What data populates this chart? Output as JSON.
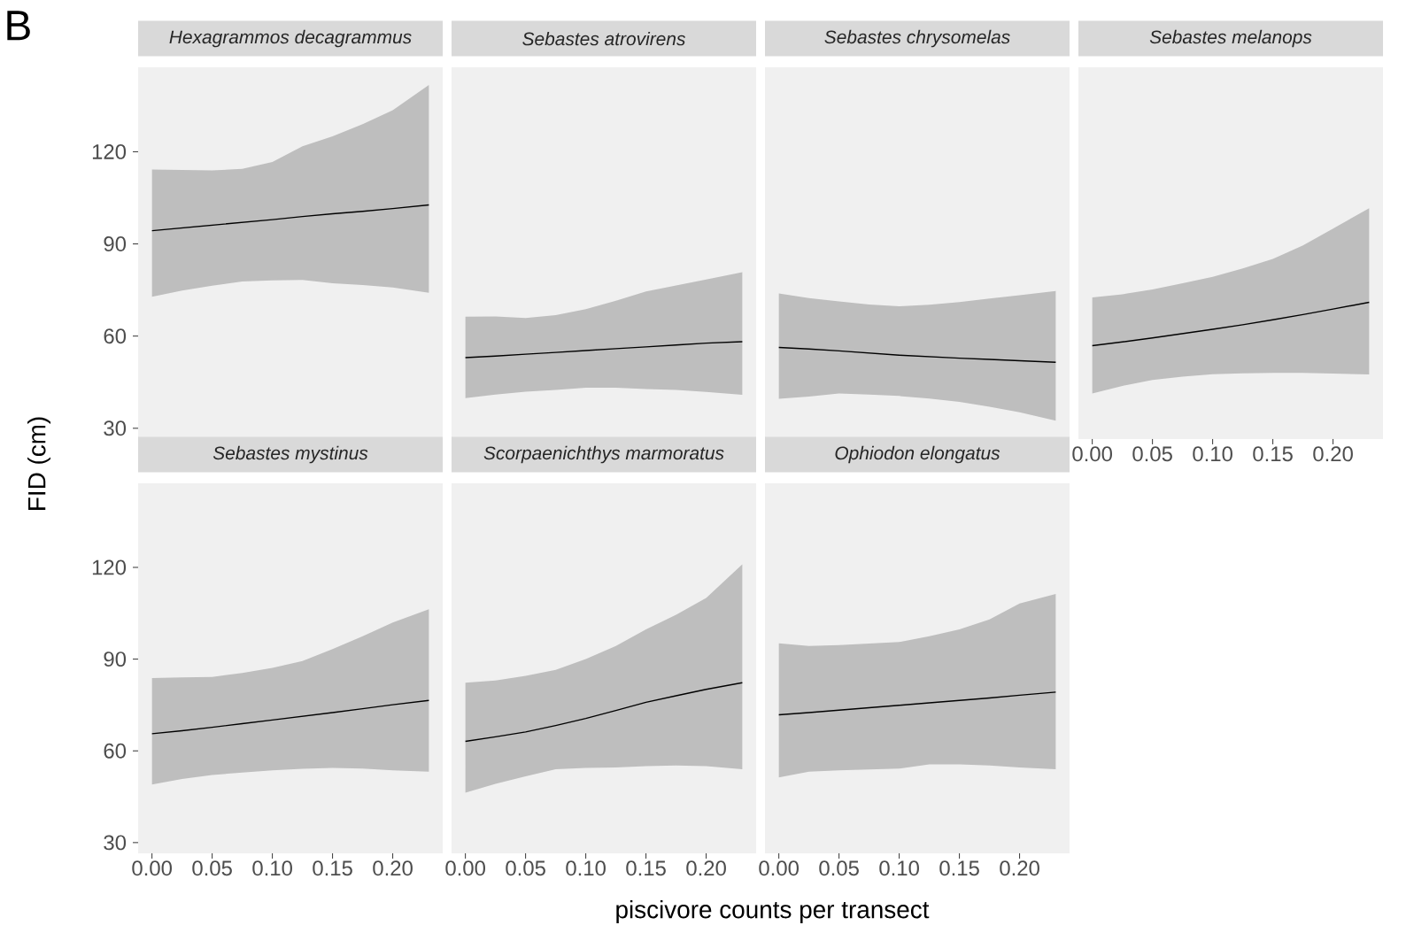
{
  "chart_data": [
    {
      "type": "line",
      "title": "Hexagrammos decagrammus",
      "annotations": [
        "B"
      ],
      "xlim": [
        -0.0115,
        0.2415
      ],
      "ylim": [
        26.5,
        147.5
      ],
      "yticks": [
        30,
        60,
        90,
        120
      ],
      "tick_labels": "y",
      "x": [
        0,
        0.025,
        0.05,
        0.075,
        0.1,
        0.125,
        0.15,
        0.175,
        0.2,
        0.23
      ],
      "series": [
        {
          "color": "#000000",
          "values": [
            94.3,
            95.2,
            96.1,
            97.0,
            97.9,
            98.9,
            99.8,
            100.6,
            101.5,
            102.7
          ],
          "upper": [
            114.2,
            114.1,
            113.9,
            114.4,
            116.7,
            121.8,
            125,
            129,
            133.5,
            141.7
          ],
          "lower": [
            72.8,
            74.8,
            76.4,
            77.8,
            78.1,
            78.3,
            77.2,
            76.6,
            75.8,
            74.1
          ]
        }
      ]
    },
    {
      "type": "line",
      "title": "Sebastes atrovirens",
      "xlim": [
        -0.0115,
        0.2415
      ],
      "ylim": [
        26.5,
        147.5
      ],
      "tick_labels": false,
      "x": [
        0,
        0.025,
        0.05,
        0.075,
        0.1,
        0.125,
        0.15,
        0.175,
        0.2,
        0.23
      ],
      "series": [
        {
          "color": "#000000",
          "values": [
            53.0,
            53.5,
            54.1,
            54.7,
            55.3,
            55.9,
            56.5,
            57.1,
            57.7,
            58.2
          ],
          "upper": [
            66.3,
            66.4,
            65.9,
            66.8,
            68.8,
            71.5,
            74.5,
            76.5,
            78.4,
            80.8
          ],
          "lower": [
            39.8,
            41.0,
            41.9,
            42.5,
            43.2,
            43.2,
            42.8,
            42.5,
            41.8,
            40.9
          ]
        }
      ]
    },
    {
      "type": "line",
      "title": "Sebastes chrysomelas",
      "xlim": [
        -0.0115,
        0.2415
      ],
      "ylim": [
        26.5,
        147.5
      ],
      "tick_labels": false,
      "x": [
        0,
        0.025,
        0.05,
        0.075,
        0.1,
        0.125,
        0.15,
        0.175,
        0.2,
        0.23
      ],
      "series": [
        {
          "color": "#000000",
          "values": [
            56.3,
            55.8,
            55.2,
            54.5,
            53.8,
            53.3,
            52.8,
            52.4,
            52.0,
            51.5
          ],
          "upper": [
            73.9,
            72.4,
            71.3,
            70.3,
            69.7,
            70.2,
            71.1,
            72.2,
            73.3,
            74.7
          ],
          "lower": [
            39.6,
            40.3,
            41.3,
            41.0,
            40.5,
            39.7,
            38.6,
            37.0,
            35.2,
            32.5
          ]
        }
      ]
    },
    {
      "type": "line",
      "title": "Sebastes melanops",
      "xlim": [
        -0.0115,
        0.2415
      ],
      "ylim": [
        26.5,
        147.5
      ],
      "xticks": [
        {
          "value": 0,
          "label": "0.00"
        },
        {
          "value": 0.05,
          "label": "0.05"
        },
        {
          "value": 0.1,
          "label": "0.10"
        },
        {
          "value": 0.15,
          "label": "0.15"
        },
        {
          "value": 0.2,
          "label": "0.20"
        }
      ],
      "tick_labels": "x",
      "x": [
        0,
        0.025,
        0.05,
        0.075,
        0.1,
        0.125,
        0.15,
        0.175,
        0.2,
        0.23
      ],
      "series": [
        {
          "color": "#000000",
          "values": [
            56.9,
            58.1,
            59.4,
            60.8,
            62.2,
            63.7,
            65.3,
            67.0,
            68.8,
            71.0
          ],
          "upper": [
            72.6,
            73.6,
            75.2,
            77.2,
            79.3,
            82.0,
            85.1,
            89.5,
            95.0,
            101.6
          ],
          "lower": [
            41.3,
            43.8,
            45.7,
            46.8,
            47.6,
            47.9,
            48.0,
            48.0,
            47.8,
            47.5
          ]
        }
      ]
    },
    {
      "type": "line",
      "title": "Sebastes mystinus",
      "ylabel": "FID (cm)",
      "xlim": [
        -0.0115,
        0.2415
      ],
      "ylim": [
        26.5,
        147.5
      ],
      "xticks": [
        {
          "value": 0,
          "label": "0.00"
        },
        {
          "value": 0.05,
          "label": "0.05"
        },
        {
          "value": 0.1,
          "label": "0.10"
        },
        {
          "value": 0.15,
          "label": "0.15"
        },
        {
          "value": 0.2,
          "label": "0.20"
        }
      ],
      "yticks": [
        30,
        60,
        90,
        120
      ],
      "x": [
        0,
        0.025,
        0.05,
        0.075,
        0.1,
        0.125,
        0.15,
        0.175,
        0.2,
        0.23
      ],
      "series": [
        {
          "color": "#000000",
          "values": [
            65.6,
            66.6,
            67.7,
            68.9,
            70.1,
            71.3,
            72.5,
            73.8,
            75.1,
            76.5
          ],
          "upper": [
            83.8,
            84.0,
            84.2,
            85.5,
            87.1,
            89.4,
            93.3,
            97.5,
            102,
            106.3
          ],
          "lower": [
            49,
            50.8,
            52.1,
            52.9,
            53.6,
            54.1,
            54.4,
            54.2,
            53.6,
            53.2
          ]
        }
      ]
    },
    {
      "type": "line",
      "title": "Scorpaenichthys marmoratus",
      "xlabel": "piscivore counts per transect",
      "xlim": [
        -0.0115,
        0.2415
      ],
      "ylim": [
        26.5,
        147.5
      ],
      "xticks": [
        {
          "value": 0,
          "label": "0.00"
        },
        {
          "value": 0.05,
          "label": "0.05"
        },
        {
          "value": 0.1,
          "label": "0.10"
        },
        {
          "value": 0.15,
          "label": "0.15"
        },
        {
          "value": 0.2,
          "label": "0.20"
        }
      ],
      "tick_labels": "x",
      "x": [
        0,
        0.025,
        0.05,
        0.075,
        0.1,
        0.125,
        0.15,
        0.175,
        0.2,
        0.23
      ],
      "series": [
        {
          "color": "#000000",
          "values": [
            63.1,
            64.6,
            66.2,
            68.3,
            70.6,
            73.2,
            75.9,
            78.0,
            80.1,
            82.3
          ],
          "upper": [
            82.3,
            83,
            84.5,
            86.5,
            90,
            94.3,
            99.7,
            104.5,
            110,
            121
          ],
          "lower": [
            46.3,
            49.2,
            51.7,
            54.0,
            54.4,
            54.6,
            55.0,
            55.2,
            55.0,
            54.0
          ]
        }
      ]
    },
    {
      "type": "line",
      "title": "Ophiodon elongatus",
      "xlim": [
        -0.0115,
        0.2415
      ],
      "ylim": [
        26.5,
        147.5
      ],
      "xticks": [
        {
          "value": 0,
          "label": "0.00"
        },
        {
          "value": 0.05,
          "label": "0.05"
        },
        {
          "value": 0.1,
          "label": "0.10"
        },
        {
          "value": 0.15,
          "label": "0.15"
        },
        {
          "value": 0.2,
          "label": "0.20"
        }
      ],
      "tick_labels": "x",
      "x": [
        0,
        0.025,
        0.05,
        0.075,
        0.1,
        0.125,
        0.15,
        0.175,
        0.2,
        0.23
      ],
      "series": [
        {
          "color": "#000000",
          "values": [
            71.8,
            72.5,
            73.3,
            74.1,
            74.9,
            75.7,
            76.5,
            77.3,
            78.2,
            79.2
          ],
          "upper": [
            95.2,
            94.3,
            94.6,
            95.1,
            95.6,
            97.5,
            99.7,
            103,
            108.2,
            111.3
          ],
          "lower": [
            51.3,
            53.2,
            53.6,
            53.9,
            54.2,
            55.6,
            55.6,
            55.2,
            54.6,
            54.0
          ]
        }
      ]
    }
  ]
}
